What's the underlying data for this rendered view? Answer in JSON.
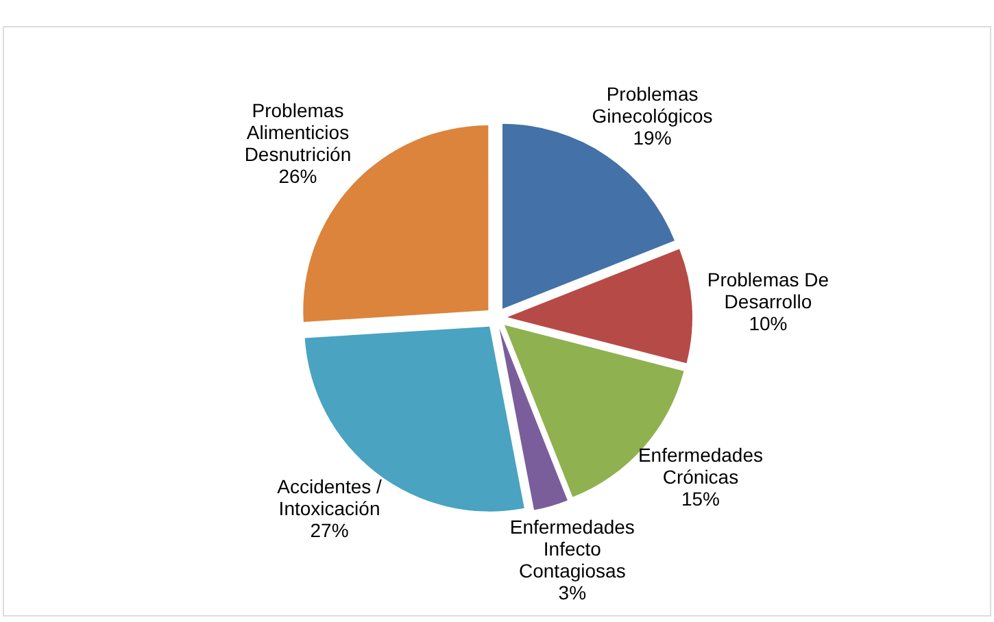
{
  "chart_data": {
    "type": "pie",
    "categories": [
      "Problemas Ginecológicos",
      "Problemas De Desarrollo",
      "Enfermedades Crónicas",
      "Enfermedades Infecto Contagiosas",
      "Accidentes / Intoxicación",
      "Problemas Alimenticios Desnutrición"
    ],
    "values": [
      19,
      10,
      15,
      3,
      27,
      26
    ],
    "value_labels": [
      "19%",
      "10%",
      "15%",
      "3%",
      "27%",
      "26%"
    ],
    "colors": [
      "#4471a7",
      "#b64a47",
      "#8fb150",
      "#7a5e9c",
      "#4aa3c0",
      "#dc843b"
    ]
  }
}
